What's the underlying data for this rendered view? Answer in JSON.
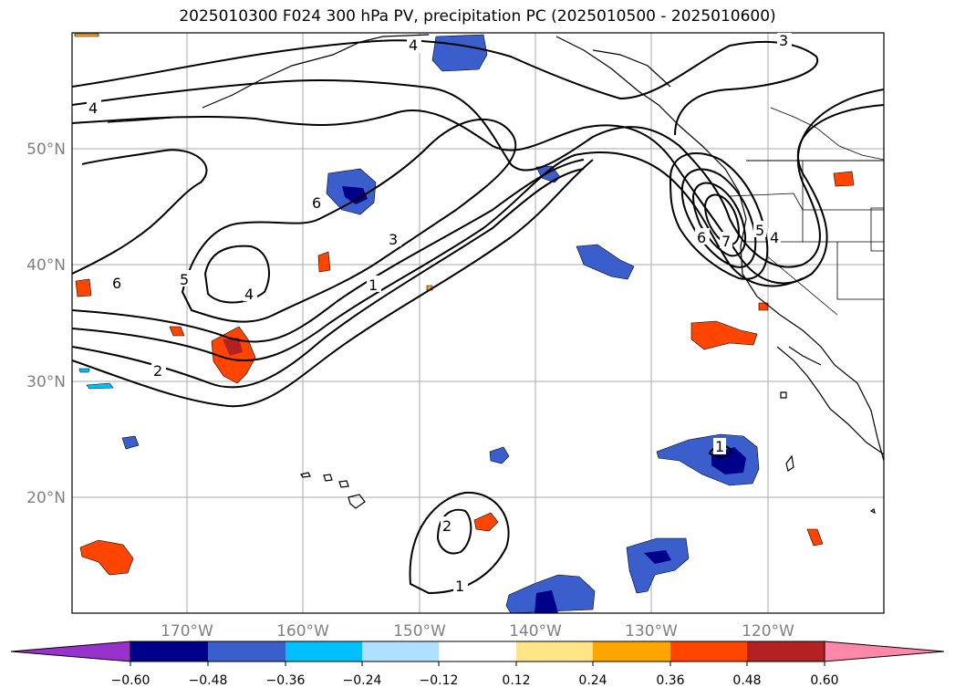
{
  "title": "2025010300 F024 300 hPa PV, precipitation PC (2025010500 - 2025010600)",
  "map": {
    "lat_labels": [
      "50°N",
      "40°N",
      "30°N",
      "20°N"
    ],
    "lon_labels": [
      "170°W",
      "160°W",
      "150°W",
      "140°W",
      "130°W",
      "120°W"
    ],
    "gridline_color": "#aaaaaa",
    "contour_color": "#000000",
    "coastline_color": "#000000"
  },
  "colorbar": {
    "ticks": [
      "−0.60",
      "−0.48",
      "−0.36",
      "−0.24",
      "−0.12",
      "0.12",
      "0.24",
      "0.36",
      "0.48",
      "0.60"
    ],
    "under_color": "#9932cc",
    "over_color": "#ff88aa",
    "bin_colors": [
      "#00008b",
      "#3a5fcd",
      "#00bfff",
      "#b0e0ff",
      "#ffffff",
      "#ffe58a",
      "#ffa500",
      "#ff4500",
      "#b22222"
    ]
  },
  "pv_contour_labels": [
    {
      "text": "4"
    },
    {
      "text": "4"
    },
    {
      "text": "3"
    },
    {
      "text": "6"
    },
    {
      "text": "3"
    },
    {
      "text": "1"
    },
    {
      "text": "6"
    },
    {
      "text": "5"
    },
    {
      "text": "4"
    },
    {
      "text": "2"
    },
    {
      "text": "6"
    },
    {
      "text": "7"
    },
    {
      "text": "5"
    },
    {
      "text": "4"
    },
    {
      "text": "1"
    },
    {
      "text": "2"
    },
    {
      "text": "1"
    }
  ]
}
